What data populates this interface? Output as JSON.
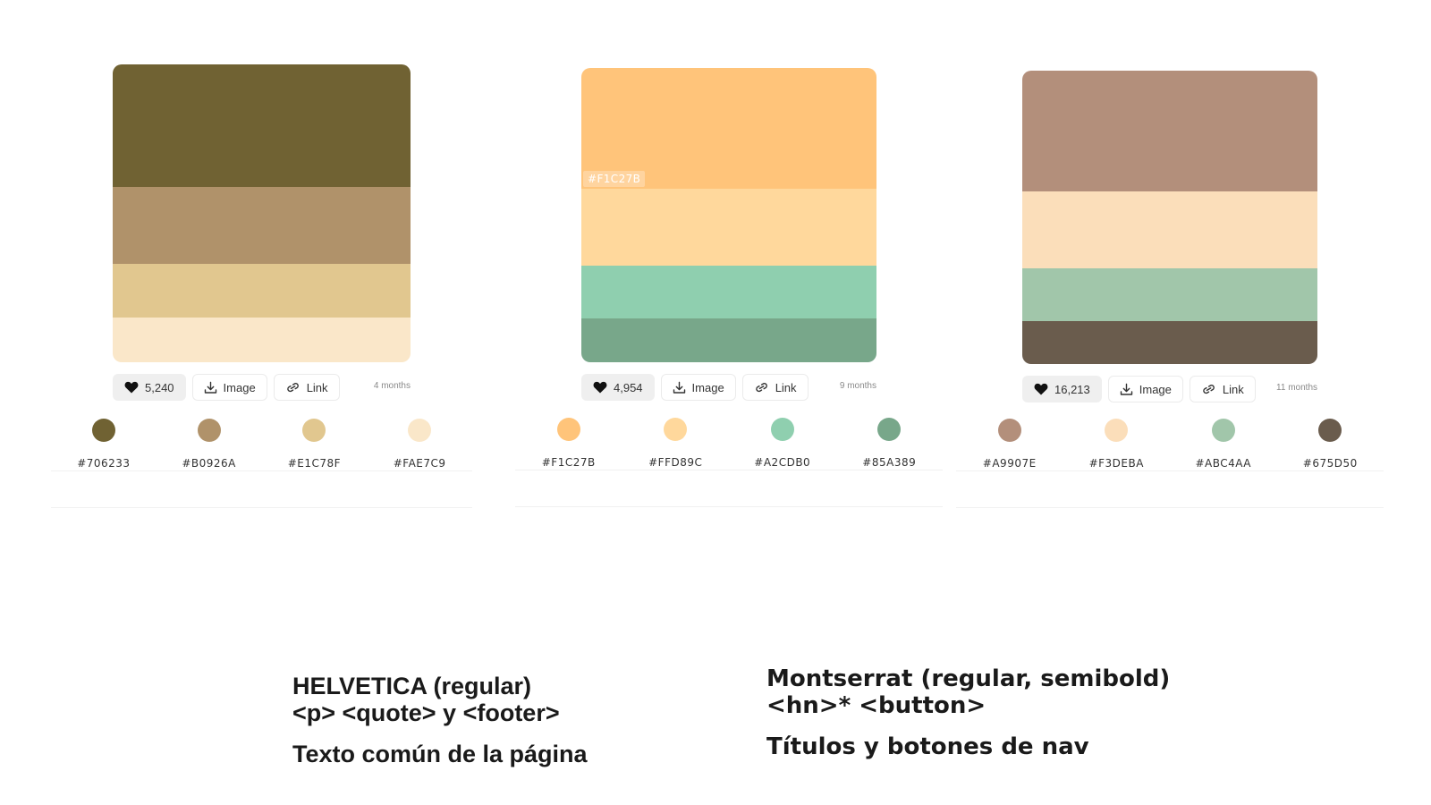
{
  "palettes": [
    {
      "bands": [
        "#706233",
        "#B0926A",
        "#E1C78F",
        "#FAE7C9"
      ],
      "likes": "5,240",
      "image_label": "Image",
      "link_label": "Link",
      "age": "4 months",
      "swatches": [
        {
          "color": "#706233",
          "hex": "#706233"
        },
        {
          "color": "#B0926A",
          "hex": "#B0926A"
        },
        {
          "color": "#E1C78F",
          "hex": "#E1C78F"
        },
        {
          "color": "#FAE7C9",
          "hex": "#FAE7C9"
        }
      ]
    },
    {
      "bands": [
        "#F1C27B",
        "#FFD89C",
        "#A2CDB0",
        "#85A389"
      ],
      "hover_label": "#F1C27B",
      "likes": "4,954",
      "image_label": "Image",
      "link_label": "Link",
      "age": "9 months",
      "swatches": [
        {
          "color": "#F1C27B",
          "hex": "#F1C27B"
        },
        {
          "color": "#FFD89C",
          "hex": "#FFD89C"
        },
        {
          "color": "#A2CDB0",
          "hex": "#A2CDB0"
        },
        {
          "color": "#85A389",
          "hex": "#85A389"
        }
      ]
    },
    {
      "bands": [
        "#A9907E",
        "#F3DEBA",
        "#ABC4AA",
        "#675D50"
      ],
      "likes": "16,213",
      "image_label": "Image",
      "link_label": "Link",
      "age": "11 months",
      "swatches": [
        {
          "color": "#A9907E",
          "hex": "#A9907E"
        },
        {
          "color": "#F3DEBA",
          "hex": "#F3DEBA"
        },
        {
          "color": "#ABC4AA",
          "hex": "#ABC4AA"
        },
        {
          "color": "#675D50",
          "hex": "#675D50"
        }
      ]
    }
  ],
  "typography": {
    "helvetica": {
      "line1": "HELVETICA (regular)",
      "line2": "<p> <quote> y <footer>",
      "desc": "Texto común de la página"
    },
    "montserrat": {
      "line1": "Montserrat (regular, semibold)",
      "line2": "<hn>* <button>",
      "desc": "Títulos y botones de nav"
    }
  }
}
